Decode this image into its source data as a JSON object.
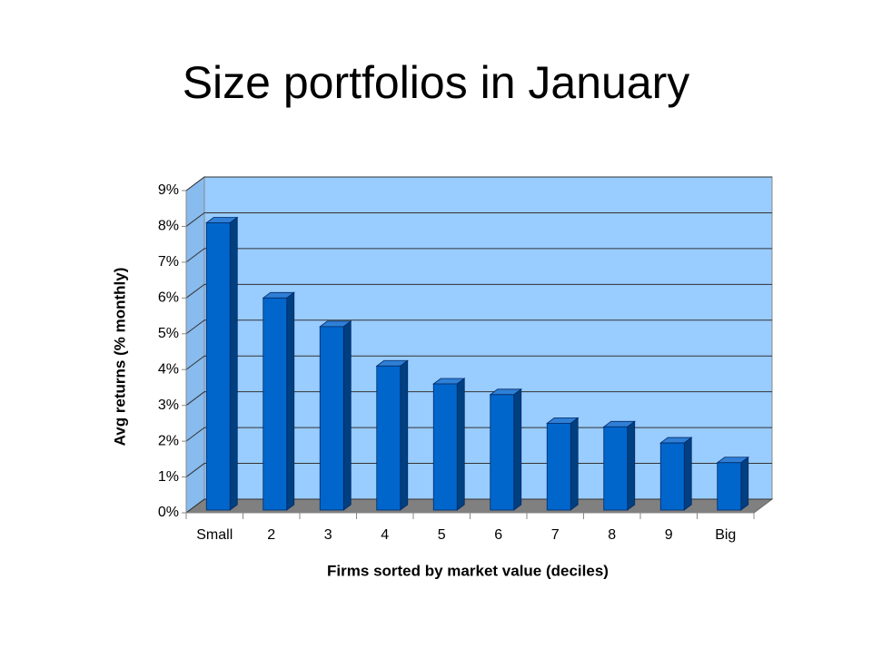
{
  "chart_data": {
    "type": "bar3d",
    "title": "Size portfolios in January",
    "x_label": "Firms sorted by market value (deciles)",
    "y_label": "Avg returns (% monthly)",
    "categories": [
      "Small",
      "2",
      "3",
      "4",
      "5",
      "6",
      "7",
      "8",
      "9",
      "Big"
    ],
    "values": [
      8.1,
      6.0,
      5.2,
      4.1,
      3.6,
      3.3,
      2.5,
      2.4,
      1.95,
      1.4
    ],
    "color": "#0066cc",
    "ylim": [
      0,
      9
    ],
    "yticks": [
      {
        "value": 0,
        "label": "0%"
      },
      {
        "value": 1,
        "label": "1%"
      },
      {
        "value": 2,
        "label": "2%"
      },
      {
        "value": 3,
        "label": "3%"
      },
      {
        "value": 4,
        "label": "4%"
      },
      {
        "value": 5,
        "label": "5%"
      },
      {
        "value": 6,
        "label": "6%"
      },
      {
        "value": 7,
        "label": "7%"
      },
      {
        "value": 8,
        "label": "8%"
      },
      {
        "value": 9,
        "label": "9%"
      }
    ],
    "grid": true
  }
}
